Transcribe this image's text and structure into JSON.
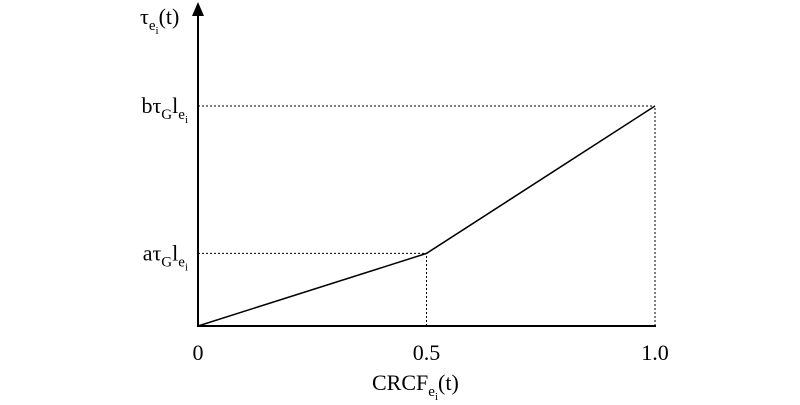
{
  "chart_data": {
    "type": "line",
    "ylabel": [
      {
        "text": "τ",
        "sub": 0
      },
      {
        "text": "e",
        "sub": 1
      },
      {
        "text": "i",
        "sub": 2
      },
      {
        "text": "(t)",
        "sub": 0
      }
    ],
    "xlabel": [
      {
        "text": "CRCF",
        "sub": 0
      },
      {
        "text": "e",
        "sub": 1
      },
      {
        "text": "i",
        "sub": 2
      },
      {
        "text": "(t)",
        "sub": 0
      }
    ],
    "x": [
      0,
      0.5,
      1.0
    ],
    "values": [
      0,
      0.33,
      1.0
    ],
    "color": "#000000",
    "xlim": [
      0,
      1.0
    ],
    "ylim": [
      0,
      1.45
    ],
    "xticks": [
      0,
      0.5,
      {
        "value": 1.0,
        "label": "1.0"
      }
    ],
    "yticks": [
      {
        "value": 0.33,
        "label": [
          {
            "text": "aτ",
            "sub": 0
          },
          {
            "text": "G",
            "sub": 1
          },
          {
            "text": "l",
            "sub": 0
          },
          {
            "text": "e",
            "sub": 1
          },
          {
            "text": "i",
            "sub": 2
          }
        ]
      },
      {
        "value": 1.0,
        "label": [
          {
            "text": "bτ",
            "sub": 0
          },
          {
            "text": "G",
            "sub": 1
          },
          {
            "text": "l",
            "sub": 0
          },
          {
            "text": "e",
            "sub": 1
          },
          {
            "text": "i",
            "sub": 2
          }
        ]
      }
    ],
    "guides": true
  }
}
